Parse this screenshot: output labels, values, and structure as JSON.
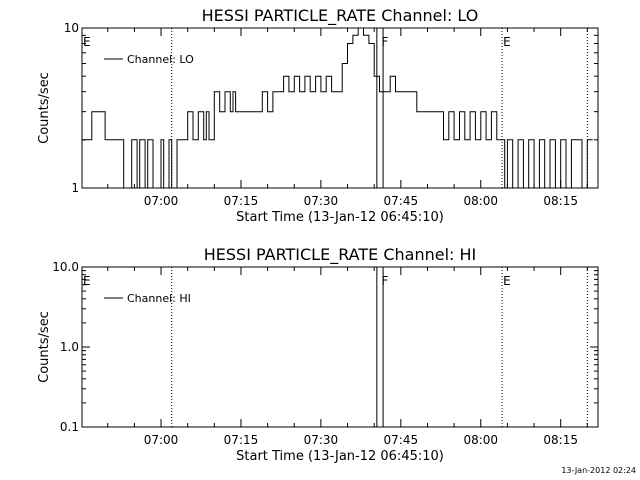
{
  "footer": {
    "timestamp": "13-Jan-2012 02:24"
  },
  "chart_data": [
    {
      "type": "line",
      "title": "HESSI PARTICLE_RATE Channel: LO",
      "xlabel": "Start Time (13-Jan-12 06:45:10)",
      "ylabel": "Counts/sec",
      "x_start": "06:45:10",
      "xlim": [
        "06:45:10",
        "08:22:00"
      ],
      "x_ticks": [
        "07:00",
        "07:15",
        "07:30",
        "07:45",
        "08:00",
        "08:15"
      ],
      "y_scale": "log",
      "ylim": [
        1,
        10
      ],
      "y_ticks": [
        "1",
        "10"
      ],
      "legend": {
        "label": "Channel: LO",
        "placement": "top-left"
      },
      "markers": [
        {
          "label": "E",
          "time": "06:45:10"
        },
        {
          "label": "F",
          "time": "07:41:10"
        },
        {
          "label": "E",
          "time": "08:04:00"
        }
      ],
      "dotted_lines": [
        "07:02:00",
        "08:04:00",
        "08:20:00"
      ],
      "solid_lines": [
        "07:40:30",
        "07:41:40"
      ],
      "series": [
        {
          "x": [
            "06:45:10",
            "06:47:00",
            "06:48:30",
            "06:49:30",
            "06:52:00",
            "06:53:00",
            "06:54:30",
            "06:55:30",
            "06:56:00",
            "06:57:00",
            "06:57:30",
            "06:58:30",
            "06:59:00",
            "07:00:00",
            "07:00:30",
            "07:01:30",
            "07:02:00",
            "07:03:00",
            "07:04:00",
            "07:05:00",
            "07:06:00",
            "07:07:00",
            "07:08:00",
            "07:08:30",
            "07:09:00",
            "07:10:00",
            "07:11:00",
            "07:12:00",
            "07:13:00",
            "07:13:30",
            "07:14:00",
            "07:15:00",
            "07:16:00",
            "07:17:00",
            "07:18:00",
            "07:19:00",
            "07:20:00",
            "07:21:00",
            "07:22:00",
            "07:23:00",
            "07:24:00",
            "07:25:00",
            "07:26:00",
            "07:27:00",
            "07:28:00",
            "07:29:00",
            "07:30:00",
            "07:31:00",
            "07:32:00",
            "07:33:00",
            "07:34:00",
            "07:35:00",
            "07:36:00",
            "07:37:00",
            "07:38:00",
            "07:39:00",
            "07:40:00",
            "07:41:00",
            "07:42:00",
            "07:43:00",
            "07:44:00",
            "07:45:00",
            "07:46:00",
            "07:47:00",
            "07:48:00",
            "07:49:00",
            "07:50:00",
            "07:51:00",
            "07:52:00",
            "07:53:00",
            "07:54:00",
            "07:55:00",
            "07:56:00",
            "07:57:00",
            "07:58:00",
            "07:59:00",
            "08:00:00",
            "08:01:00",
            "08:02:00",
            "08:03:00",
            "08:04:00",
            "08:04:30",
            "08:05:00",
            "08:06:00",
            "08:07:00",
            "08:08:00",
            "08:09:00",
            "08:10:00",
            "08:11:00",
            "08:12:00",
            "08:13:00",
            "08:14:00",
            "08:15:00",
            "08:16:00",
            "08:17:00",
            "08:18:00",
            "08:19:00",
            "08:20:00",
            "08:21:00"
          ],
          "y": [
            2,
            3,
            3,
            2,
            2,
            1,
            2,
            1,
            2,
            1,
            2,
            1,
            1,
            2,
            1,
            2,
            1,
            2,
            2,
            3,
            2,
            3,
            2,
            3,
            2,
            4,
            3,
            4,
            3,
            4,
            3,
            3,
            3,
            3,
            3,
            4,
            3,
            4,
            4,
            5,
            4,
            5,
            4,
            5,
            4,
            5,
            4,
            5,
            4,
            4,
            6,
            8,
            9,
            10,
            9,
            8,
            5,
            4,
            4,
            5,
            4,
            4,
            4,
            4,
            3,
            3,
            3,
            3,
            3,
            2,
            3,
            2,
            3,
            2,
            3,
            2,
            3,
            2,
            3,
            2,
            2,
            1,
            2,
            1,
            2,
            1,
            2,
            1,
            2,
            1,
            2,
            1,
            2,
            1,
            2,
            2,
            1,
            2,
            2
          ]
        }
      ]
    },
    {
      "type": "line",
      "title": "HESSI PARTICLE_RATE Channel: HI",
      "xlabel": "Start Time (13-Jan-12 06:45:10)",
      "ylabel": "Counts/sec",
      "x_start": "06:45:10",
      "xlim": [
        "06:45:10",
        "08:22:00"
      ],
      "x_ticks": [
        "07:00",
        "07:15",
        "07:30",
        "07:45",
        "08:00",
        "08:15"
      ],
      "y_scale": "log",
      "ylim": [
        0.1,
        10
      ],
      "y_ticks": [
        "0.1",
        "1.0",
        "10.0"
      ],
      "legend": {
        "label": "Channel: HI",
        "placement": "top-left"
      },
      "markers": [
        {
          "label": "E",
          "time": "06:45:10"
        },
        {
          "label": "F",
          "time": "07:41:10"
        },
        {
          "label": "E",
          "time": "08:04:00"
        }
      ],
      "dotted_lines": [
        "07:02:00",
        "08:04:00",
        "08:20:00"
      ],
      "solid_lines": [
        "07:40:30",
        "07:41:40"
      ],
      "series": []
    }
  ]
}
